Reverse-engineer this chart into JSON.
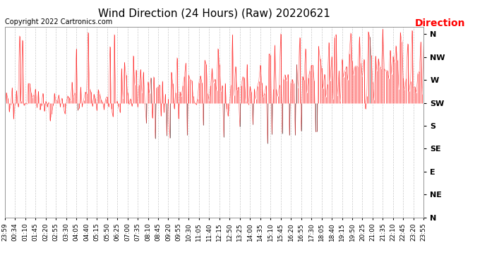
{
  "title": "Wind Direction (24 Hours) (Raw) 20220621",
  "copyright": "Copyright 2022 Cartronics.com",
  "legend_label": "Direction",
  "background_color": "#ffffff",
  "plot_bg_color": "#ffffff",
  "grid_color": "#bbbbbb",
  "line_color_red": "#ff0000",
  "line_color_dark": "#333333",
  "ytick_labels": [
    "N",
    "NW",
    "W",
    "SW",
    "S",
    "SE",
    "E",
    "NE",
    "N"
  ],
  "ytick_values": [
    360,
    315,
    270,
    225,
    180,
    135,
    90,
    45,
    0
  ],
  "ylim": [
    0,
    375
  ],
  "title_fontsize": 11,
  "copyright_fontsize": 7,
  "legend_fontsize": 10,
  "tick_fontsize": 6.5,
  "ytick_fontsize": 8,
  "figsize": [
    6.9,
    3.75
  ],
  "dpi": 100,
  "xtick_labels": [
    "23:59",
    "00:34",
    "01:10",
    "01:45",
    "02:20",
    "02:55",
    "03:30",
    "04:05",
    "04:40",
    "05:15",
    "05:50",
    "06:25",
    "07:00",
    "07:35",
    "08:10",
    "08:45",
    "09:20",
    "09:55",
    "10:30",
    "11:05",
    "11:40",
    "12:15",
    "12:50",
    "13:25",
    "14:00",
    "14:35",
    "15:10",
    "15:45",
    "16:20",
    "16:55",
    "17:30",
    "18:05",
    "18:40",
    "19:15",
    "19:50",
    "20:25",
    "21:00",
    "21:35",
    "22:10",
    "22:45",
    "23:20",
    "23:55"
  ]
}
